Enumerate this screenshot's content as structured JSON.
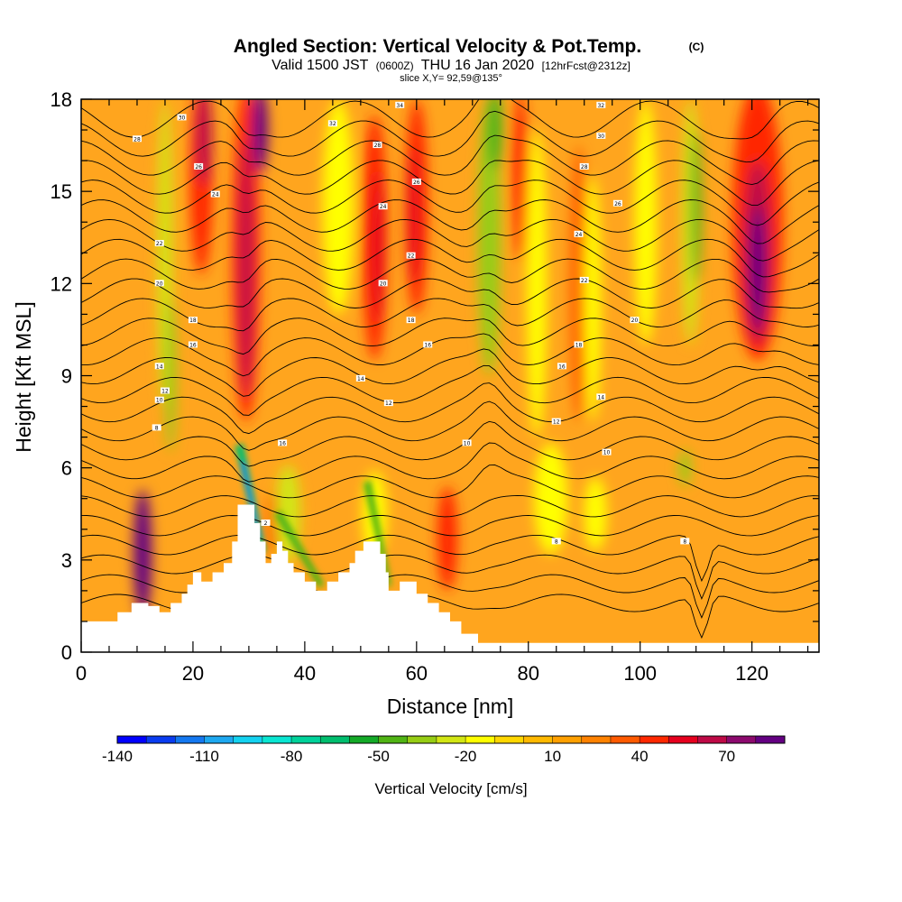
{
  "chart_data": {
    "type": "heatmap",
    "title": "Angled Section: Vertical Velocity & Pot.Temp.",
    "title_suffix": "(C)",
    "subtitle_parts": [
      "Valid 1500 JST",
      "(0600Z)",
      "THU 16 Jan 2020",
      "[12hrFcst@2312z]"
    ],
    "slice_text": "slice X,Y= 92,59@135°",
    "xlabel": "Distance [nm]",
    "ylabel": "Height [Kft MSL]",
    "xlim": [
      0,
      132
    ],
    "ylim": [
      0,
      18
    ],
    "x_ticks": [
      0,
      20,
      40,
      60,
      80,
      100,
      120
    ],
    "y_ticks": [
      0,
      3,
      6,
      9,
      12,
      15,
      18
    ],
    "colorbar": {
      "label": "Vertical Velocity [cm/s]",
      "range": [
        -140,
        90
      ],
      "step": 10,
      "tick_labels": [
        -140,
        -110,
        -80,
        -50,
        -20,
        10,
        40,
        70
      ],
      "colors": [
        "#0000ff",
        "#0a3cf0",
        "#1478f0",
        "#1ea8f0",
        "#14d2f0",
        "#0ae6d2",
        "#00d29a",
        "#00be6e",
        "#14aa28",
        "#50b414",
        "#96cd14",
        "#d2e614",
        "#ffff00",
        "#ffd700",
        "#ffb900",
        "#ffa000",
        "#ff8200",
        "#ff5a00",
        "#ff2800",
        "#e6001e",
        "#be0a46",
        "#8c0a6e",
        "#640082"
      ]
    },
    "background_fill": "#ffa51e",
    "terrain": [
      [
        0,
        1.0
      ],
      [
        6.5,
        1.0
      ],
      [
        6.5,
        1.3
      ],
      [
        9,
        1.3
      ],
      [
        9,
        1.6
      ],
      [
        12,
        1.6
      ],
      [
        12,
        1.5
      ],
      [
        14,
        1.5
      ],
      [
        14,
        1.3
      ],
      [
        16,
        1.3
      ],
      [
        16,
        1.6
      ],
      [
        18,
        1.6
      ],
      [
        18,
        1.9
      ],
      [
        19,
        1.9
      ],
      [
        19,
        2.2
      ],
      [
        20,
        2.2
      ],
      [
        20,
        2.6
      ],
      [
        21.5,
        2.6
      ],
      [
        21.5,
        2.3
      ],
      [
        23.5,
        2.3
      ],
      [
        23.5,
        2.6
      ],
      [
        25.5,
        2.6
      ],
      [
        25.5,
        2.9
      ],
      [
        27,
        2.9
      ],
      [
        27,
        3.6
      ],
      [
        28,
        3.6
      ],
      [
        28,
        4.8
      ],
      [
        31,
        4.8
      ],
      [
        31,
        4.2
      ],
      [
        32,
        4.2
      ],
      [
        32,
        3.6
      ],
      [
        33,
        3.6
      ],
      [
        33,
        2.9
      ],
      [
        34,
        2.9
      ],
      [
        34,
        3.2
      ],
      [
        35,
        3.2
      ],
      [
        35,
        3.6
      ],
      [
        36,
        3.6
      ],
      [
        36,
        3.3
      ],
      [
        37,
        3.3
      ],
      [
        37,
        2.9
      ],
      [
        38,
        2.9
      ],
      [
        38,
        2.6
      ],
      [
        40,
        2.6
      ],
      [
        40,
        2.3
      ],
      [
        42,
        2.3
      ],
      [
        42,
        2.0
      ],
      [
        44,
        2.0
      ],
      [
        44,
        2.3
      ],
      [
        46,
        2.3
      ],
      [
        46,
        2.6
      ],
      [
        48,
        2.6
      ],
      [
        48,
        2.9
      ],
      [
        49,
        2.9
      ],
      [
        49,
        3.3
      ],
      [
        50.5,
        3.3
      ],
      [
        50.5,
        3.6
      ],
      [
        53.5,
        3.6
      ],
      [
        53.5,
        3.2
      ],
      [
        54.5,
        3.2
      ],
      [
        54.5,
        2.6
      ],
      [
        55,
        2.6
      ],
      [
        55,
        2.0
      ],
      [
        57,
        2.0
      ],
      [
        57,
        2.3
      ],
      [
        60,
        2.3
      ],
      [
        60,
        1.9
      ],
      [
        62,
        1.9
      ],
      [
        62,
        1.6
      ],
      [
        64,
        1.6
      ],
      [
        64,
        1.3
      ],
      [
        66,
        1.3
      ],
      [
        66,
        1.0
      ],
      [
        68,
        1.0
      ],
      [
        68,
        0.6
      ],
      [
        71,
        0.6
      ],
      [
        71,
        0.3
      ],
      [
        132,
        0.3
      ]
    ],
    "plumes": [
      {
        "x": 11,
        "y": 3.2,
        "rx": 1.6,
        "ry": 2.1,
        "value": 80
      },
      {
        "x": 11,
        "y": 3.0,
        "rx": 0.8,
        "ry": 1.4,
        "value": 90
      },
      {
        "x": 21.5,
        "y": 15.5,
        "rx": 2.0,
        "ry": 3.2,
        "value": 40
      },
      {
        "x": 22,
        "y": 16.8,
        "rx": 1.4,
        "ry": 1.6,
        "value": 60
      },
      {
        "x": 29.5,
        "y": 13.0,
        "rx": 2.5,
        "ry": 5.5,
        "value": 40
      },
      {
        "x": 29.5,
        "y": 12.5,
        "rx": 1.3,
        "ry": 4.2,
        "value": 60
      },
      {
        "x": 32.0,
        "y": 17.0,
        "rx": 1.4,
        "ry": 1.4,
        "value": 80
      },
      {
        "x": 34.5,
        "y": 4.2,
        "rx": 1.0,
        "ry": 1.0,
        "value": 40
      },
      {
        "x": 52.5,
        "y": 13.5,
        "rx": 2.2,
        "ry": 4.0,
        "value": 40
      },
      {
        "x": 53.0,
        "y": 13.2,
        "rx": 1.1,
        "ry": 2.5,
        "value": 50
      },
      {
        "x": 60.0,
        "y": 14.5,
        "rx": 2.0,
        "ry": 3.5,
        "value": 40
      },
      {
        "x": 59.5,
        "y": 14.2,
        "rx": 1.0,
        "ry": 2.2,
        "value": 50
      },
      {
        "x": 65.5,
        "y": 3.7,
        "rx": 1.8,
        "ry": 1.7,
        "value": 40
      },
      {
        "x": 78.5,
        "y": 15.5,
        "rx": 1.3,
        "ry": 2.8,
        "value": 40
      },
      {
        "x": 89.0,
        "y": 12.0,
        "rx": 1.5,
        "ry": 4.5,
        "value": 30
      },
      {
        "x": 121.0,
        "y": 14.0,
        "rx": 4.5,
        "ry": 4.5,
        "value": 40
      },
      {
        "x": 121.0,
        "y": 13.0,
        "rx": 2.5,
        "ry": 3.0,
        "value": 60
      },
      {
        "x": 121.0,
        "y": 12.5,
        "rx": 1.3,
        "ry": 2.0,
        "value": 80
      }
    ],
    "streaks": [
      {
        "x": 15.0,
        "y": 13.0,
        "rx": 1.3,
        "ry": 5.0,
        "value": -30
      },
      {
        "x": 16.0,
        "y": 9.0,
        "rx": 0.9,
        "ry": 2.5,
        "value": -40
      },
      {
        "x": 46.0,
        "y": 14.5,
        "rx": 2.8,
        "ry": 3.5,
        "value": -20
      },
      {
        "x": 73.0,
        "y": 13.5,
        "rx": 2.0,
        "ry": 4.5,
        "value": -40
      },
      {
        "x": 74.0,
        "y": 17.0,
        "rx": 1.4,
        "ry": 1.3,
        "value": -50
      },
      {
        "x": 81.5,
        "y": 12.0,
        "rx": 1.8,
        "ry": 5.0,
        "value": -20
      },
      {
        "x": 91.5,
        "y": 11.5,
        "rx": 1.5,
        "ry": 4.0,
        "value": -20
      },
      {
        "x": 101.0,
        "y": 14.0,
        "rx": 2.0,
        "ry": 4.0,
        "value": -20
      },
      {
        "x": 109.0,
        "y": 14.0,
        "rx": 1.5,
        "ry": 4.0,
        "value": -30
      },
      {
        "x": 110.0,
        "y": 14.5,
        "rx": 0.9,
        "ry": 2.5,
        "value": -50
      },
      {
        "x": 84.0,
        "y": 5.0,
        "rx": 3.0,
        "ry": 1.8,
        "value": -20
      },
      {
        "x": 92.0,
        "y": 4.5,
        "rx": 2.0,
        "ry": 1.2,
        "value": -20
      },
      {
        "x": 108.0,
        "y": 6.0,
        "rx": 1.0,
        "ry": 0.6,
        "value": -40
      },
      {
        "x": 37.0,
        "y": 4.5,
        "rx": 2.2,
        "ry": 1.6,
        "value": -30
      },
      {
        "x": 52.5,
        "y": 4.5,
        "rx": 2.2,
        "ry": 1.4,
        "value": -20
      }
    ],
    "downdraft": {
      "band": [
        [
          27.5,
          6.7
        ],
        [
          29.0,
          6.8
        ],
        [
          33.0,
          3.3
        ],
        [
          32.0,
          3.2
        ]
      ],
      "core": [
        [
          28.5,
          6.2
        ],
        [
          29.2,
          6.2
        ],
        [
          32.2,
          3.7
        ],
        [
          31.6,
          3.7
        ]
      ],
      "value_band": -70,
      "value_core": -120,
      "lee_band": [
        [
          34.5,
          4.5
        ],
        [
          35.8,
          4.6
        ],
        [
          43.5,
          2.2
        ],
        [
          42.5,
          2.1
        ]
      ],
      "lee_value": -50,
      "lee_band2": [
        [
          50.5,
          5.5
        ],
        [
          51.8,
          5.6
        ],
        [
          55.5,
          2.2
        ],
        [
          54.8,
          2.1
        ]
      ],
      "lee_value2": -50
    },
    "contour_levels": [
      -10,
      -8,
      -6,
      -4,
      -2,
      0,
      2,
      4,
      6,
      8,
      10,
      12,
      14,
      16,
      18,
      20,
      22,
      24,
      26,
      28,
      30,
      32,
      34,
      36
    ],
    "contour_labels": [
      {
        "text": "8",
        "x": 13.5,
        "y": 7.3
      },
      {
        "text": "10",
        "x": 14,
        "y": 8.2
      },
      {
        "text": "12",
        "x": 15,
        "y": 8.5
      },
      {
        "text": "14",
        "x": 14,
        "y": 9.3
      },
      {
        "text": "16",
        "x": 20,
        "y": 10.0
      },
      {
        "text": "18",
        "x": 20,
        "y": 10.8
      },
      {
        "text": "20",
        "x": 14,
        "y": 12.0
      },
      {
        "text": "22",
        "x": 14,
        "y": 13.3
      },
      {
        "text": "24",
        "x": 24,
        "y": 14.9
      },
      {
        "text": "26",
        "x": 21,
        "y": 15.8
      },
      {
        "text": "28",
        "x": 10,
        "y": 16.7
      },
      {
        "text": "30",
        "x": 18,
        "y": 17.4
      },
      {
        "text": "32",
        "x": 45,
        "y": 17.2
      },
      {
        "text": "34",
        "x": 57,
        "y": 17.8
      },
      {
        "text": "14",
        "x": 50,
        "y": 8.9
      },
      {
        "text": "16",
        "x": 62,
        "y": 10.0
      },
      {
        "text": "18",
        "x": 59,
        "y": 10.8
      },
      {
        "text": "20",
        "x": 54,
        "y": 12.0
      },
      {
        "text": "22",
        "x": 59,
        "y": 12.9
      },
      {
        "text": "24",
        "x": 54,
        "y": 14.5
      },
      {
        "text": "26",
        "x": 60,
        "y": 15.3
      },
      {
        "text": "28",
        "x": 53,
        "y": 16.5
      },
      {
        "text": "12",
        "x": 55,
        "y": 8.1
      },
      {
        "text": "10",
        "x": 69,
        "y": 6.8
      },
      {
        "text": "16",
        "x": 36,
        "y": 6.8
      },
      {
        "text": "2",
        "x": 33,
        "y": 4.2
      },
      {
        "text": "8",
        "x": 85,
        "y": 3.6
      },
      {
        "text": "8",
        "x": 108,
        "y": 3.6
      },
      {
        "text": "10",
        "x": 94,
        "y": 6.5
      },
      {
        "text": "12",
        "x": 85,
        "y": 7.5
      },
      {
        "text": "14",
        "x": 93,
        "y": 8.3
      },
      {
        "text": "16",
        "x": 86,
        "y": 9.3
      },
      {
        "text": "18",
        "x": 89,
        "y": 10.0
      },
      {
        "text": "20",
        "x": 99,
        "y": 10.8
      },
      {
        "text": "22",
        "x": 90,
        "y": 12.1
      },
      {
        "text": "24",
        "x": 89,
        "y": 13.6
      },
      {
        "text": "26",
        "x": 96,
        "y": 14.6
      },
      {
        "text": "28",
        "x": 90,
        "y": 15.8
      },
      {
        "text": "30",
        "x": 93,
        "y": 16.8
      },
      {
        "text": "32",
        "x": 93,
        "y": 17.8
      }
    ]
  }
}
